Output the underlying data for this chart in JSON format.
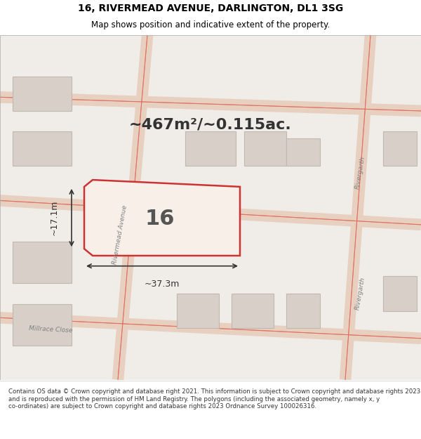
{
  "title_line1": "16, RIVERMEAD AVENUE, DARLINGTON, DL1 3SG",
  "title_line2": "Map shows position and indicative extent of the property.",
  "footer_text": "Contains OS data © Crown copyright and database right 2021. This information is subject to Crown copyright and database rights 2023 and is reproduced with the permission of HM Land Registry. The polygons (including the associated geometry, namely x, y co-ordinates) are subject to Crown copyright and database rights 2023 Ordnance Survey 100026316.",
  "background_color": "#f5f5f0",
  "map_background": "#f0ede8",
  "road_color": "#e8d0c0",
  "road_line_color": "#e07060",
  "plot_fill": "#f5f5f0",
  "plot_border_color": "#cc3333",
  "building_fill": "#d8d0c8",
  "building_border": "#c0b8b0",
  "street_label_color": "#808080",
  "measurement_color": "#333333",
  "plot_label": "16",
  "area_text": "~467m²/~0.115ac.",
  "width_label": "~37.3m",
  "height_label": "~17.1m",
  "street_names": [
    "Rivermead Avenue",
    "Rivergarth",
    "Millrace Close"
  ]
}
